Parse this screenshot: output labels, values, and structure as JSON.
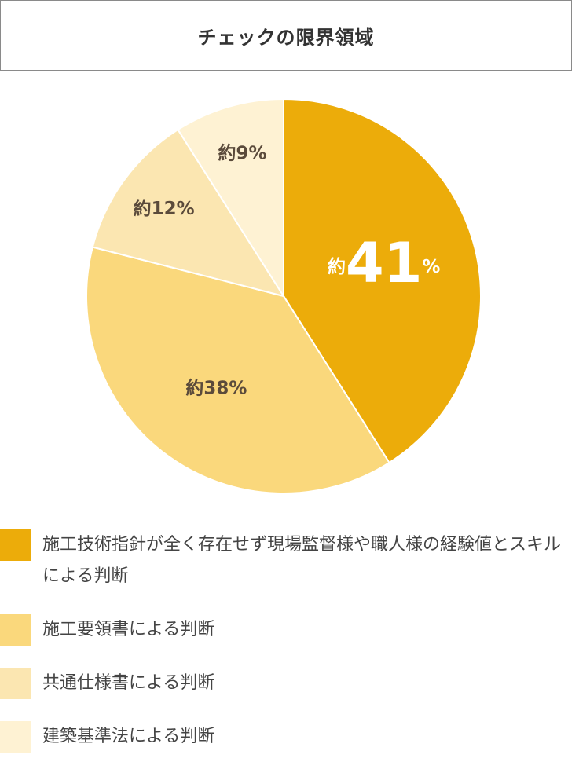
{
  "chart_data": {
    "type": "pie",
    "title": "チェックの限界領域",
    "categories": [
      "施工技術指針が全く存在せず現場監督様や職人様の経験値とスキルによる判断",
      "施工要領書による判断",
      "共通仕様書による判断",
      "建築基準法による判断"
    ],
    "values": [
      41,
      38,
      12,
      9
    ],
    "value_labels": [
      "約41%",
      "約38%",
      "約12%",
      "約9%"
    ],
    "colors": [
      "#ecac0a",
      "#fad87c",
      "#fbe6b1",
      "#fef2d3"
    ]
  }
}
